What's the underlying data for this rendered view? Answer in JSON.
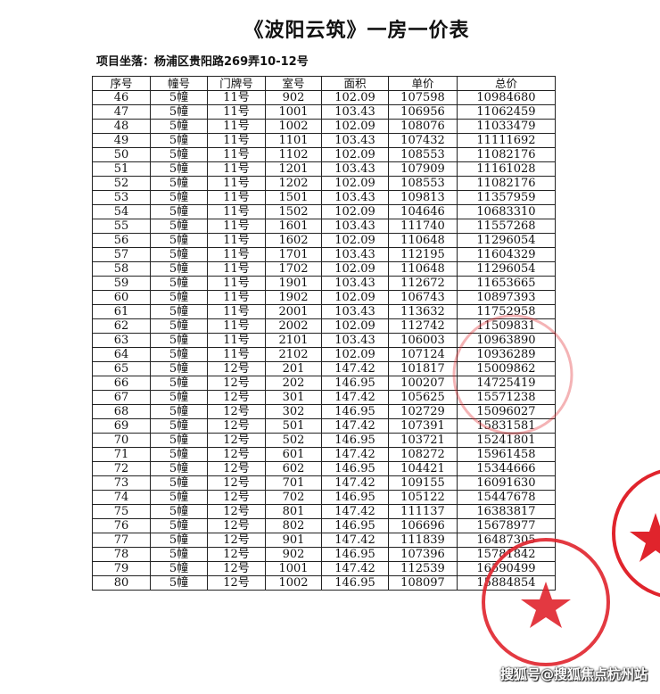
{
  "title": "《波阳云筑》一房一价表",
  "subtitle": "项目坐落：杨浦区贵阳路269弄10-12号",
  "table": {
    "headers": [
      "序号",
      "幢号",
      "门牌号",
      "室号",
      "面积",
      "单价",
      "总价"
    ],
    "rows": [
      [
        "46",
        "5幢",
        "11号",
        "902",
        "102.09",
        "107598",
        "10984680"
      ],
      [
        "47",
        "5幢",
        "11号",
        "1001",
        "103.43",
        "106956",
        "11062459"
      ],
      [
        "48",
        "5幢",
        "11号",
        "1002",
        "102.09",
        "108076",
        "11033479"
      ],
      [
        "49",
        "5幢",
        "11号",
        "1101",
        "103.43",
        "107432",
        "11111692"
      ],
      [
        "50",
        "5幢",
        "11号",
        "1102",
        "102.09",
        "108553",
        "11082176"
      ],
      [
        "51",
        "5幢",
        "11号",
        "1201",
        "103.43",
        "107909",
        "11161028"
      ],
      [
        "52",
        "5幢",
        "11号",
        "1202",
        "102.09",
        "108553",
        "11082176"
      ],
      [
        "53",
        "5幢",
        "11号",
        "1501",
        "103.43",
        "109813",
        "11357959"
      ],
      [
        "54",
        "5幢",
        "11号",
        "1502",
        "102.09",
        "104646",
        "10683310"
      ],
      [
        "55",
        "5幢",
        "11号",
        "1601",
        "103.43",
        "111740",
        "11557268"
      ],
      [
        "56",
        "5幢",
        "11号",
        "1602",
        "102.09",
        "110648",
        "11296054"
      ],
      [
        "57",
        "5幢",
        "11号",
        "1701",
        "103.43",
        "112195",
        "11604329"
      ],
      [
        "58",
        "5幢",
        "11号",
        "1702",
        "102.09",
        "110648",
        "11296054"
      ],
      [
        "59",
        "5幢",
        "11号",
        "1901",
        "103.43",
        "112672",
        "11653665"
      ],
      [
        "60",
        "5幢",
        "11号",
        "1902",
        "102.09",
        "106743",
        "10897393"
      ],
      [
        "61",
        "5幢",
        "11号",
        "2001",
        "103.43",
        "113632",
        "11752958"
      ],
      [
        "62",
        "5幢",
        "11号",
        "2002",
        "102.09",
        "112742",
        "11509831"
      ],
      [
        "63",
        "5幢",
        "11号",
        "2101",
        "103.43",
        "106003",
        "10963890"
      ],
      [
        "64",
        "5幢",
        "11号",
        "2102",
        "102.09",
        "107124",
        "10936289"
      ],
      [
        "65",
        "5幢",
        "12号",
        "201",
        "147.42",
        "101817",
        "15009862"
      ],
      [
        "66",
        "5幢",
        "12号",
        "202",
        "146.95",
        "100207",
        "14725419"
      ],
      [
        "67",
        "5幢",
        "12号",
        "301",
        "147.42",
        "105625",
        "15571238"
      ],
      [
        "68",
        "5幢",
        "12号",
        "302",
        "146.95",
        "102729",
        "15096027"
      ],
      [
        "69",
        "5幢",
        "12号",
        "501",
        "147.42",
        "107391",
        "15831581"
      ],
      [
        "70",
        "5幢",
        "12号",
        "502",
        "146.95",
        "103721",
        "15241801"
      ],
      [
        "71",
        "5幢",
        "12号",
        "601",
        "147.42",
        "108272",
        "15961458"
      ],
      [
        "72",
        "5幢",
        "12号",
        "602",
        "146.95",
        "104421",
        "15344666"
      ],
      [
        "73",
        "5幢",
        "12号",
        "701",
        "147.42",
        "109155",
        "16091630"
      ],
      [
        "74",
        "5幢",
        "12号",
        "702",
        "146.95",
        "105122",
        "15447678"
      ],
      [
        "75",
        "5幢",
        "12号",
        "801",
        "147.42",
        "111137",
        "16383817"
      ],
      [
        "76",
        "5幢",
        "12号",
        "802",
        "146.95",
        "106696",
        "15678977"
      ],
      [
        "77",
        "5幢",
        "12号",
        "901",
        "147.42",
        "111839",
        "16487305"
      ],
      [
        "78",
        "5幢",
        "12号",
        "902",
        "146.95",
        "107396",
        "15781842"
      ],
      [
        "79",
        "5幢",
        "12号",
        "1001",
        "147.42",
        "112539",
        "16590499"
      ],
      [
        "80",
        "5幢",
        "12号",
        "1002",
        "146.95",
        "108097",
        "15884854"
      ]
    ]
  },
  "stamp_color": "#e0242c",
  "watermark": "搜狐号@搜狐焦点杭州站"
}
